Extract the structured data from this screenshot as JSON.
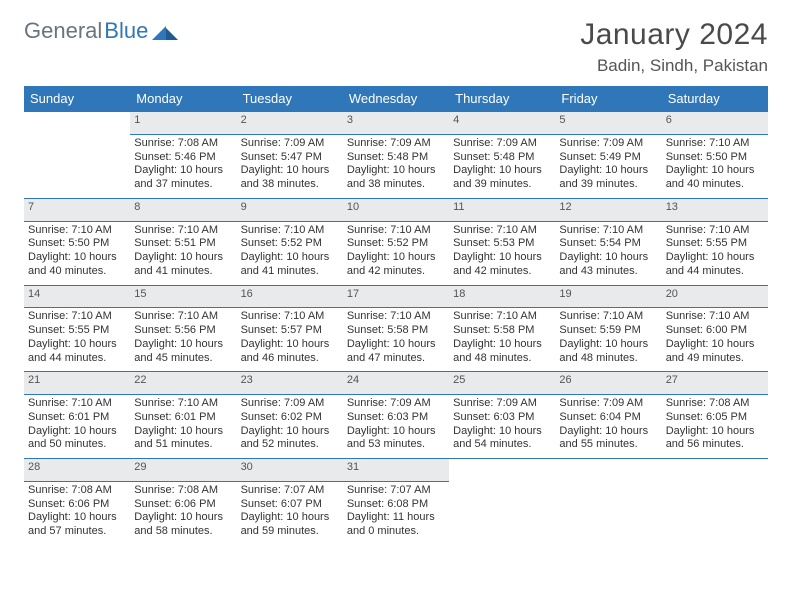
{
  "brand": {
    "word1": "General",
    "word2": "Blue"
  },
  "title": {
    "month": "January 2024",
    "location": "Badin, Sindh, Pakistan"
  },
  "colors": {
    "accent": "#2f77b8",
    "header_bg": "#2f77b8",
    "header_text": "#ffffff",
    "daynum_bg": "#e9eaec",
    "rule": "#2f77b8",
    "text": "#333333",
    "muted": "#555555",
    "bg": "#ffffff"
  },
  "calendar": {
    "type": "table",
    "day_headers": [
      "Sunday",
      "Monday",
      "Tuesday",
      "Wednesday",
      "Thursday",
      "Friday",
      "Saturday"
    ],
    "first_weekday_index": 1,
    "days": [
      {
        "n": 1,
        "sunrise": "7:08 AM",
        "sunset": "5:46 PM",
        "daylight": "10 hours and 37 minutes."
      },
      {
        "n": 2,
        "sunrise": "7:09 AM",
        "sunset": "5:47 PM",
        "daylight": "10 hours and 38 minutes."
      },
      {
        "n": 3,
        "sunrise": "7:09 AM",
        "sunset": "5:48 PM",
        "daylight": "10 hours and 38 minutes."
      },
      {
        "n": 4,
        "sunrise": "7:09 AM",
        "sunset": "5:48 PM",
        "daylight": "10 hours and 39 minutes."
      },
      {
        "n": 5,
        "sunrise": "7:09 AM",
        "sunset": "5:49 PM",
        "daylight": "10 hours and 39 minutes."
      },
      {
        "n": 6,
        "sunrise": "7:10 AM",
        "sunset": "5:50 PM",
        "daylight": "10 hours and 40 minutes."
      },
      {
        "n": 7,
        "sunrise": "7:10 AM",
        "sunset": "5:50 PM",
        "daylight": "10 hours and 40 minutes."
      },
      {
        "n": 8,
        "sunrise": "7:10 AM",
        "sunset": "5:51 PM",
        "daylight": "10 hours and 41 minutes."
      },
      {
        "n": 9,
        "sunrise": "7:10 AM",
        "sunset": "5:52 PM",
        "daylight": "10 hours and 41 minutes."
      },
      {
        "n": 10,
        "sunrise": "7:10 AM",
        "sunset": "5:52 PM",
        "daylight": "10 hours and 42 minutes."
      },
      {
        "n": 11,
        "sunrise": "7:10 AM",
        "sunset": "5:53 PM",
        "daylight": "10 hours and 42 minutes."
      },
      {
        "n": 12,
        "sunrise": "7:10 AM",
        "sunset": "5:54 PM",
        "daylight": "10 hours and 43 minutes."
      },
      {
        "n": 13,
        "sunrise": "7:10 AM",
        "sunset": "5:55 PM",
        "daylight": "10 hours and 44 minutes."
      },
      {
        "n": 14,
        "sunrise": "7:10 AM",
        "sunset": "5:55 PM",
        "daylight": "10 hours and 44 minutes."
      },
      {
        "n": 15,
        "sunrise": "7:10 AM",
        "sunset": "5:56 PM",
        "daylight": "10 hours and 45 minutes."
      },
      {
        "n": 16,
        "sunrise": "7:10 AM",
        "sunset": "5:57 PM",
        "daylight": "10 hours and 46 minutes."
      },
      {
        "n": 17,
        "sunrise": "7:10 AM",
        "sunset": "5:58 PM",
        "daylight": "10 hours and 47 minutes."
      },
      {
        "n": 18,
        "sunrise": "7:10 AM",
        "sunset": "5:58 PM",
        "daylight": "10 hours and 48 minutes."
      },
      {
        "n": 19,
        "sunrise": "7:10 AM",
        "sunset": "5:59 PM",
        "daylight": "10 hours and 48 minutes."
      },
      {
        "n": 20,
        "sunrise": "7:10 AM",
        "sunset": "6:00 PM",
        "daylight": "10 hours and 49 minutes."
      },
      {
        "n": 21,
        "sunrise": "7:10 AM",
        "sunset": "6:01 PM",
        "daylight": "10 hours and 50 minutes."
      },
      {
        "n": 22,
        "sunrise": "7:10 AM",
        "sunset": "6:01 PM",
        "daylight": "10 hours and 51 minutes."
      },
      {
        "n": 23,
        "sunrise": "7:09 AM",
        "sunset": "6:02 PM",
        "daylight": "10 hours and 52 minutes."
      },
      {
        "n": 24,
        "sunrise": "7:09 AM",
        "sunset": "6:03 PM",
        "daylight": "10 hours and 53 minutes."
      },
      {
        "n": 25,
        "sunrise": "7:09 AM",
        "sunset": "6:03 PM",
        "daylight": "10 hours and 54 minutes."
      },
      {
        "n": 26,
        "sunrise": "7:09 AM",
        "sunset": "6:04 PM",
        "daylight": "10 hours and 55 minutes."
      },
      {
        "n": 27,
        "sunrise": "7:08 AM",
        "sunset": "6:05 PM",
        "daylight": "10 hours and 56 minutes."
      },
      {
        "n": 28,
        "sunrise": "7:08 AM",
        "sunset": "6:06 PM",
        "daylight": "10 hours and 57 minutes."
      },
      {
        "n": 29,
        "sunrise": "7:08 AM",
        "sunset": "6:06 PM",
        "daylight": "10 hours and 58 minutes."
      },
      {
        "n": 30,
        "sunrise": "7:07 AM",
        "sunset": "6:07 PM",
        "daylight": "10 hours and 59 minutes."
      },
      {
        "n": 31,
        "sunrise": "7:07 AM",
        "sunset": "6:08 PM",
        "daylight": "11 hours and 0 minutes."
      }
    ],
    "labels": {
      "sunrise": "Sunrise:",
      "sunset": "Sunset:",
      "daylight": "Daylight:"
    },
    "fonts": {
      "header_pt": 13,
      "daynum_pt": 12,
      "cell_pt": 11,
      "month_pt": 30,
      "location_pt": 17
    }
  }
}
